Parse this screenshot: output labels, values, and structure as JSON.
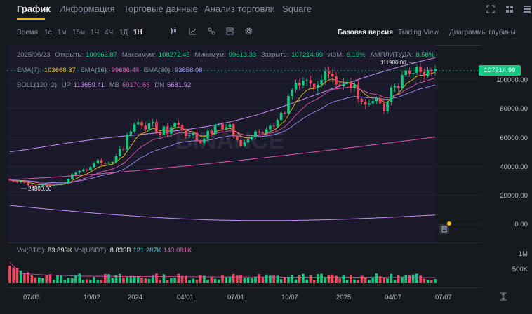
{
  "tabs": [
    {
      "label": "График"
    },
    {
      "label": "Информация"
    },
    {
      "label": "Торговые данные"
    },
    {
      "label": "Анализ торговли"
    },
    {
      "label": "Square"
    }
  ],
  "window_icons": [
    "expand-icon",
    "grid-view-icon",
    "list-view-icon"
  ],
  "toolbar": {
    "time_label": "Время",
    "intervals": [
      "1с",
      "1м",
      "15м",
      "1Ч",
      "4Ч",
      "1Д",
      "1Н"
    ],
    "selected_interval": "1Н",
    "tool_icons": [
      "candle-type-icon",
      "indicator-icon",
      "drawing-icon",
      "layout-icon",
      "column-icon",
      "settings-icon"
    ],
    "views": [
      "Базовая версия",
      "Trading View",
      "Диаграммы глубины"
    ],
    "selected_view": "Базовая версия"
  },
  "ohlc": {
    "date": "2025/06/23",
    "open_label": "Открыть:",
    "open": "100963.87",
    "high_label": "Максимум:",
    "high": "108272.45",
    "low_label": "Минимум:",
    "low": "99613.33",
    "close_label": "Закрыть:",
    "close": "107214.99",
    "change_label": "ИЗМ:",
    "change": "6.19%",
    "amplitude_label": "АМПЛИТУДА:",
    "amplitude": "8.58%"
  },
  "ema": {
    "ema7_label": "EMA(7):",
    "ema7": "103668.37",
    "ema16_label": "EMA(16):",
    "ema16": "99686.48",
    "ema30_label": "EMA(30):",
    "ema30": "93858.08"
  },
  "boll": {
    "label": "BOLL(120, 2)",
    "up_label": "UP",
    "up": "113659.41",
    "mb_label": "MB",
    "mb": "60170.66",
    "dn_label": "DN",
    "dn": "6681.92"
  },
  "price_axis": [
    "100000.00",
    "80000.00",
    "60000.00",
    "40000.00",
    "20000.00",
    "0.00"
  ],
  "current_price": "107214.99",
  "annotations": {
    "high_marker": "111980.00",
    "low_marker": "24800.00"
  },
  "watermark": "BINANCE",
  "volume": {
    "vol_btc_label": "Vol(BTC):",
    "vol_btc": "83.893K",
    "vol_usdt_label": "Vol(USDT):",
    "vol_usdt": "8.835B",
    "ma1": "121.287K",
    "ma2": "143.081K",
    "axis": [
      "1M",
      "500K"
    ]
  },
  "x_axis": [
    "07/03",
    "10/02",
    "2024",
    "04/01",
    "07/01",
    "10/07",
    "2025",
    "04/07",
    "07/07"
  ],
  "colors": {
    "up": "#0ecb81",
    "down": "#f6465d",
    "accent": "#f0b90b",
    "ema7": "#f0b90b",
    "ema16": "#e056b4",
    "ema30": "#a28bf5",
    "boll": "#c98bf5"
  },
  "chart_data": {
    "type": "candlestick",
    "y_range": [
      -5000,
      125000
    ],
    "x_ticks": [
      "07/03",
      "10/02",
      "2024",
      "04/01",
      "07/01",
      "10/07",
      "2025",
      "04/07",
      "07/07"
    ],
    "closes": [
      30500,
      29500,
      29200,
      29800,
      28800,
      27000,
      26500,
      25900,
      26300,
      27000,
      26900,
      26700,
      27200,
      27500,
      27900,
      28500,
      31000,
      34500,
      35600,
      36800,
      37700,
      37400,
      39500,
      42300,
      44300,
      42400,
      41800,
      42500,
      43000,
      47000,
      52000,
      51500,
      62000,
      64000,
      69000,
      70500,
      68000,
      65500,
      69500,
      70500,
      63000,
      61500,
      67500,
      62500,
      67000,
      70000,
      68500,
      64500,
      61000,
      61500,
      63000,
      58000,
      56000,
      59000,
      64500,
      62500,
      68500,
      69000,
      65500,
      67000,
      69000,
      61000,
      58000,
      54000,
      56500,
      58500,
      60000,
      64000,
      63500,
      62800,
      65500,
      68000,
      67500,
      72000,
      77000,
      76500,
      88500,
      93000,
      97500,
      96000,
      99000,
      99500,
      97000,
      94000,
      96500,
      99500,
      105500,
      104000,
      102000,
      96500,
      95500,
      97000,
      98000,
      94000,
      96500,
      86500,
      84500,
      82500,
      83500,
      85000,
      87000,
      83500,
      78000,
      84500,
      94500,
      95500,
      94000,
      103000,
      106000,
      104000,
      104500,
      108500,
      105000,
      102000,
      106500,
      105500,
      107214.99
    ],
    "boll_up_start": 50000,
    "boll_up_end": 113659.41,
    "boll_mb_start": 31000,
    "boll_mb_end": 60170.66,
    "boll_dn_start": 13000,
    "boll_dn_end": 6681.92
  }
}
